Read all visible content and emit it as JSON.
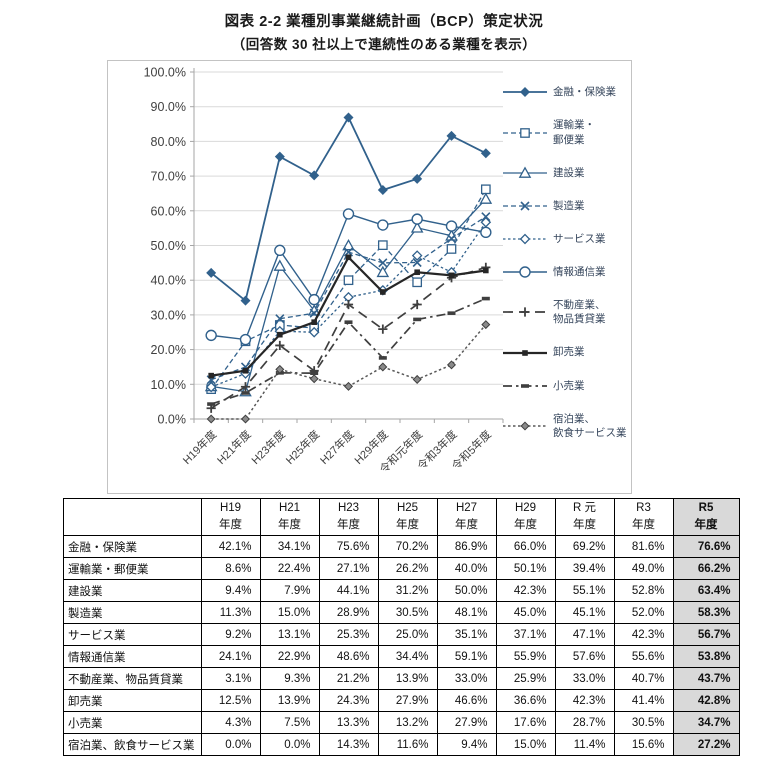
{
  "title": "図表 2-2 業種別事業継続計画（BCP）策定状況",
  "subtitle": "（回答数 30 社以上で連続性のある業種を表示）",
  "colors": {
    "series_blue": "#31618C",
    "series_dark": "#3F3F3F",
    "series_black": "#262626",
    "series_gray": "#595959",
    "gridline": "#D9D9D9",
    "axis": "#A6A6A6",
    "axis_text": "#404040",
    "table_highlight_bg": "#D9D9D9"
  },
  "chart_data": {
    "type": "line",
    "title": "図表 2-2 業種別事業継続計画（BCP）策定状況",
    "subtitle": "（回答数 30 社以上で連続性のある業種を表示）",
    "categories": [
      "H19年度",
      "H21年度",
      "H23年度",
      "H25年度",
      "H27年度",
      "H29年度",
      "令和元年度",
      "令和3年度",
      "令和5年度"
    ],
    "ylim": [
      0,
      100
    ],
    "ytick_step": 10,
    "ytick_labels": [
      "0.0%",
      "10.0%",
      "20.0%",
      "30.0%",
      "40.0%",
      "50.0%",
      "60.0%",
      "70.0%",
      "80.0%",
      "90.0%",
      "100.0%"
    ],
    "grid": true,
    "legend_position": "right",
    "series": [
      {
        "name": "金融・保険業",
        "legend_lines": [
          "金融・保険業"
        ],
        "values": [
          42.1,
          34.1,
          75.6,
          70.2,
          86.9,
          66.0,
          69.2,
          81.6,
          76.6
        ],
        "color": "#31618C",
        "line": "solid",
        "line_width": 1.8,
        "marker": "diamond-filled"
      },
      {
        "name": "運輸業・郵便業",
        "legend_lines": [
          "運輸業・",
          "郵便業"
        ],
        "values": [
          8.6,
          22.4,
          27.1,
          26.2,
          40.0,
          50.1,
          39.4,
          49.0,
          66.2
        ],
        "color": "#31618C",
        "line": "dashed",
        "line_width": 1.3,
        "marker": "square-open"
      },
      {
        "name": "建設業",
        "legend_lines": [
          "建設業"
        ],
        "values": [
          9.4,
          7.9,
          44.1,
          31.2,
          50.0,
          42.3,
          55.1,
          52.8,
          63.4
        ],
        "color": "#31618C",
        "line": "solid",
        "line_width": 1.3,
        "marker": "triangle-open"
      },
      {
        "name": "製造業",
        "legend_lines": [
          "製造業"
        ],
        "values": [
          11.3,
          15.0,
          28.9,
          30.5,
          48.1,
          45.0,
          45.1,
          52.0,
          58.3
        ],
        "color": "#31618C",
        "line": "dashed",
        "line_width": 1.3,
        "marker": "x"
      },
      {
        "name": "サービス業",
        "legend_lines": [
          "サービス業"
        ],
        "values": [
          9.2,
          13.1,
          25.3,
          25.0,
          35.1,
          37.1,
          47.1,
          42.3,
          56.7
        ],
        "color": "#31618C",
        "line": "dotted",
        "line_width": 1.3,
        "marker": "diamond-open"
      },
      {
        "name": "情報通信業",
        "legend_lines": [
          "情報通信業"
        ],
        "values": [
          24.1,
          22.9,
          48.6,
          34.4,
          59.1,
          55.9,
          57.6,
          55.6,
          53.8
        ],
        "color": "#31618C",
        "line": "solid",
        "line_width": 1.4,
        "marker": "circle-open"
      },
      {
        "name": "不動産業、物品賃貸業",
        "legend_lines": [
          "不動産業、",
          "物品賃貸業"
        ],
        "values": [
          3.1,
          9.3,
          21.2,
          13.9,
          33.0,
          25.9,
          33.0,
          40.7,
          43.7
        ],
        "color": "#3F3F3F",
        "line": "longdash",
        "line_width": 1.7,
        "marker": "plus"
      },
      {
        "name": "卸売業",
        "legend_lines": [
          "卸売業"
        ],
        "values": [
          12.5,
          13.9,
          24.3,
          27.9,
          46.6,
          36.6,
          42.3,
          41.4,
          42.8
        ],
        "color": "#262626",
        "line": "solid",
        "line_width": 2.2,
        "marker": "square-filled-small"
      },
      {
        "name": "小売業",
        "legend_lines": [
          "小売業"
        ],
        "values": [
          4.3,
          7.5,
          13.3,
          13.2,
          27.9,
          17.6,
          28.7,
          30.5,
          34.7
        ],
        "color": "#3F3F3F",
        "line": "dashdot",
        "line_width": 1.7,
        "marker": "dash-filled"
      },
      {
        "name": "宿泊業、飲食サービス業",
        "legend_lines": [
          "宿泊業、",
          "飲食サービス業"
        ],
        "values": [
          0.0,
          0.0,
          14.3,
          11.6,
          9.4,
          15.0,
          11.4,
          15.6,
          27.2
        ],
        "color": "#595959",
        "line": "dotted",
        "line_width": 1.5,
        "marker": "diamond-filled-small"
      }
    ]
  },
  "table": {
    "col_headers": [
      [
        "H19",
        "年度"
      ],
      [
        "H21",
        "年度"
      ],
      [
        "H23",
        "年度"
      ],
      [
        "H25",
        "年度"
      ],
      [
        "H27",
        "年度"
      ],
      [
        "H29",
        "年度"
      ],
      [
        "R 元",
        "年度"
      ],
      [
        "R3",
        "年度"
      ],
      [
        "R5",
        "年度"
      ]
    ],
    "highlight_last_column": true,
    "rows": [
      {
        "label": "金融・保険業",
        "values": [
          "42.1%",
          "34.1%",
          "75.6%",
          "70.2%",
          "86.9%",
          "66.0%",
          "69.2%",
          "81.6%",
          "76.6%"
        ]
      },
      {
        "label": "運輸業・郵便業",
        "values": [
          "8.6%",
          "22.4%",
          "27.1%",
          "26.2%",
          "40.0%",
          "50.1%",
          "39.4%",
          "49.0%",
          "66.2%"
        ]
      },
      {
        "label": "建設業",
        "values": [
          "9.4%",
          "7.9%",
          "44.1%",
          "31.2%",
          "50.0%",
          "42.3%",
          "55.1%",
          "52.8%",
          "63.4%"
        ]
      },
      {
        "label": "製造業",
        "values": [
          "11.3%",
          "15.0%",
          "28.9%",
          "30.5%",
          "48.1%",
          "45.0%",
          "45.1%",
          "52.0%",
          "58.3%"
        ]
      },
      {
        "label": "サービス業",
        "values": [
          "9.2%",
          "13.1%",
          "25.3%",
          "25.0%",
          "35.1%",
          "37.1%",
          "47.1%",
          "42.3%",
          "56.7%"
        ]
      },
      {
        "label": "情報通信業",
        "values": [
          "24.1%",
          "22.9%",
          "48.6%",
          "34.4%",
          "59.1%",
          "55.9%",
          "57.6%",
          "55.6%",
          "53.8%"
        ]
      },
      {
        "label": "不動産業、物品賃貸業",
        "values": [
          "3.1%",
          "9.3%",
          "21.2%",
          "13.9%",
          "33.0%",
          "25.9%",
          "33.0%",
          "40.7%",
          "43.7%"
        ]
      },
      {
        "label": "卸売業",
        "values": [
          "12.5%",
          "13.9%",
          "24.3%",
          "27.9%",
          "46.6%",
          "36.6%",
          "42.3%",
          "41.4%",
          "42.8%"
        ]
      },
      {
        "label": "小売業",
        "values": [
          "4.3%",
          "7.5%",
          "13.3%",
          "13.2%",
          "27.9%",
          "17.6%",
          "28.7%",
          "30.5%",
          "34.7%"
        ]
      },
      {
        "label": "宿泊業、飲食サービス業",
        "values": [
          "0.0%",
          "0.0%",
          "14.3%",
          "11.6%",
          "9.4%",
          "15.0%",
          "11.4%",
          "15.6%",
          "27.2%"
        ]
      }
    ]
  }
}
